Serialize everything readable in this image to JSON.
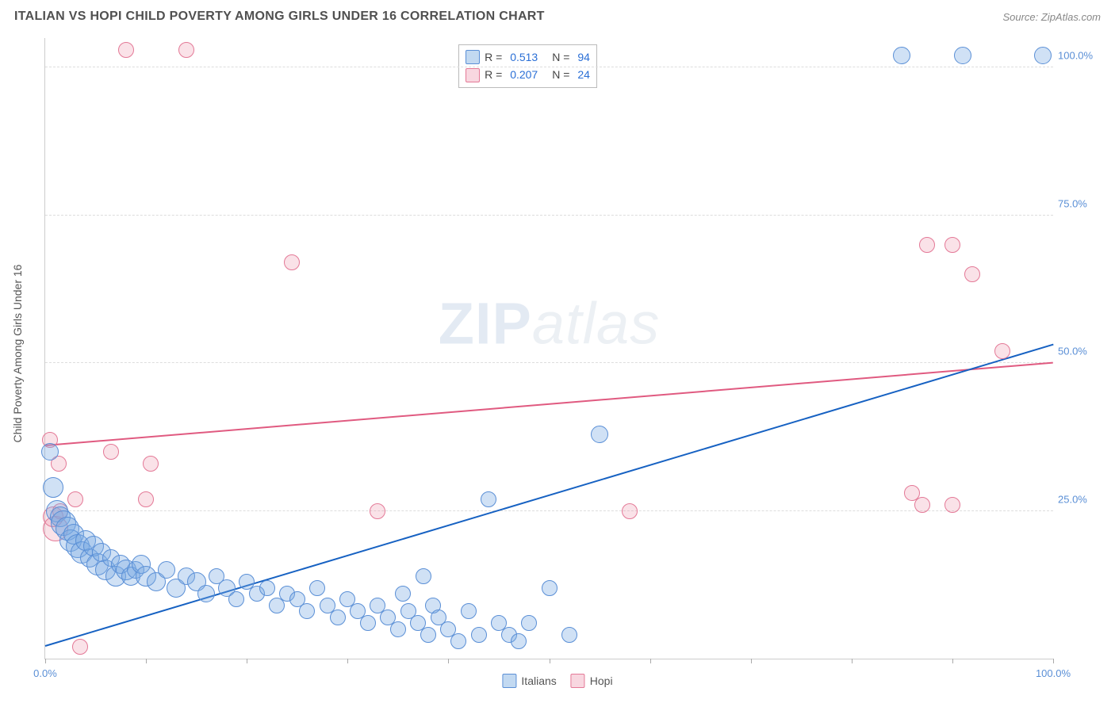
{
  "header": {
    "title": "ITALIAN VS HOPI CHILD POVERTY AMONG GIRLS UNDER 16 CORRELATION CHART",
    "source": "Source: ZipAtlas.com"
  },
  "watermark": {
    "zip": "ZIP",
    "atlas": "atlas"
  },
  "chart": {
    "type": "scatter",
    "xlim": [
      0,
      100
    ],
    "ylim": [
      0,
      105
    ],
    "xticks": [
      0,
      10,
      20,
      30,
      40,
      50,
      60,
      70,
      80,
      90,
      100
    ],
    "xtick_labels": {
      "0": "0.0%",
      "100": "100.0%"
    },
    "yticks": [
      25,
      50,
      75,
      100
    ],
    "ytick_labels": {
      "25": "25.0%",
      "50": "50.0%",
      "75": "75.0%",
      "100": "100.0%"
    },
    "yaxis_label": "Child Poverty Among Girls Under 16",
    "background_color": "#ffffff",
    "grid_color": "#dddddd",
    "legend": {
      "italians_label": "Italians",
      "hopi_label": "Hopi"
    },
    "rn_box": {
      "italians": {
        "r": "0.513",
        "n": "94"
      },
      "hopi": {
        "r": "0.207",
        "n": "24"
      }
    },
    "series": {
      "italians": {
        "color_fill": "rgba(120,170,225,0.35)",
        "color_stroke": "#5a8fd6",
        "regression": {
          "x1": 0,
          "y1": 2,
          "x2": 100,
          "y2": 53,
          "color": "#1661c2"
        },
        "points": [
          {
            "x": 0.5,
            "y": 35,
            "r": 11
          },
          {
            "x": 0.8,
            "y": 29,
            "r": 13
          },
          {
            "x": 1.2,
            "y": 25,
            "r": 14
          },
          {
            "x": 1.5,
            "y": 24,
            "r": 13
          },
          {
            "x": 1.8,
            "y": 23,
            "r": 16
          },
          {
            "x": 2.2,
            "y": 22,
            "r": 15
          },
          {
            "x": 2.5,
            "y": 20,
            "r": 14
          },
          {
            "x": 2.8,
            "y": 21,
            "r": 13
          },
          {
            "x": 3.2,
            "y": 19,
            "r": 15
          },
          {
            "x": 3.6,
            "y": 18,
            "r": 14
          },
          {
            "x": 4.0,
            "y": 20,
            "r": 13
          },
          {
            "x": 4.4,
            "y": 17,
            "r": 12
          },
          {
            "x": 4.8,
            "y": 19,
            "r": 13
          },
          {
            "x": 5.2,
            "y": 16,
            "r": 14
          },
          {
            "x": 5.6,
            "y": 18,
            "r": 12
          },
          {
            "x": 6.0,
            "y": 15,
            "r": 13
          },
          {
            "x": 6.5,
            "y": 17,
            "r": 11
          },
          {
            "x": 7.0,
            "y": 14,
            "r": 13
          },
          {
            "x": 7.5,
            "y": 16,
            "r": 12
          },
          {
            "x": 8.0,
            "y": 15,
            "r": 13
          },
          {
            "x": 8.5,
            "y": 14,
            "r": 12
          },
          {
            "x": 9.0,
            "y": 15,
            "r": 11
          },
          {
            "x": 9.5,
            "y": 16,
            "r": 12
          },
          {
            "x": 10.0,
            "y": 14,
            "r": 13
          },
          {
            "x": 11.0,
            "y": 13,
            "r": 12
          },
          {
            "x": 12.0,
            "y": 15,
            "r": 11
          },
          {
            "x": 13.0,
            "y": 12,
            "r": 12
          },
          {
            "x": 14.0,
            "y": 14,
            "r": 11
          },
          {
            "x": 15.0,
            "y": 13,
            "r": 12
          },
          {
            "x": 16.0,
            "y": 11,
            "r": 11
          },
          {
            "x": 17.0,
            "y": 14,
            "r": 10
          },
          {
            "x": 18.0,
            "y": 12,
            "r": 11
          },
          {
            "x": 19.0,
            "y": 10,
            "r": 10
          },
          {
            "x": 20.0,
            "y": 13,
            "r": 10
          },
          {
            "x": 21.0,
            "y": 11,
            "r": 10
          },
          {
            "x": 22.0,
            "y": 12,
            "r": 10
          },
          {
            "x": 23.0,
            "y": 9,
            "r": 10
          },
          {
            "x": 24.0,
            "y": 11,
            "r": 10
          },
          {
            "x": 25.0,
            "y": 10,
            "r": 10
          },
          {
            "x": 26.0,
            "y": 8,
            "r": 10
          },
          {
            "x": 27.0,
            "y": 12,
            "r": 10
          },
          {
            "x": 28.0,
            "y": 9,
            "r": 10
          },
          {
            "x": 29.0,
            "y": 7,
            "r": 10
          },
          {
            "x": 30.0,
            "y": 10,
            "r": 10
          },
          {
            "x": 31.0,
            "y": 8,
            "r": 10
          },
          {
            "x": 32.0,
            "y": 6,
            "r": 10
          },
          {
            "x": 33.0,
            "y": 9,
            "r": 10
          },
          {
            "x": 34.0,
            "y": 7,
            "r": 10
          },
          {
            "x": 35.0,
            "y": 5,
            "r": 10
          },
          {
            "x": 35.5,
            "y": 11,
            "r": 10
          },
          {
            "x": 36.0,
            "y": 8,
            "r": 10
          },
          {
            "x": 37.0,
            "y": 6,
            "r": 10
          },
          {
            "x": 37.5,
            "y": 14,
            "r": 10
          },
          {
            "x": 38.0,
            "y": 4,
            "r": 10
          },
          {
            "x": 38.5,
            "y": 9,
            "r": 10
          },
          {
            "x": 39.0,
            "y": 7,
            "r": 10
          },
          {
            "x": 40.0,
            "y": 5,
            "r": 10
          },
          {
            "x": 41.0,
            "y": 3,
            "r": 10
          },
          {
            "x": 42.0,
            "y": 8,
            "r": 10
          },
          {
            "x": 43.0,
            "y": 4,
            "r": 10
          },
          {
            "x": 44.0,
            "y": 27,
            "r": 10
          },
          {
            "x": 45.0,
            "y": 6,
            "r": 10
          },
          {
            "x": 46.0,
            "y": 4,
            "r": 10
          },
          {
            "x": 47.0,
            "y": 3,
            "r": 10
          },
          {
            "x": 48.0,
            "y": 6,
            "r": 10
          },
          {
            "x": 50.0,
            "y": 12,
            "r": 10
          },
          {
            "x": 52.0,
            "y": 4,
            "r": 10
          },
          {
            "x": 55.0,
            "y": 38,
            "r": 11
          },
          {
            "x": 85.0,
            "y": 102,
            "r": 11
          },
          {
            "x": 91.0,
            "y": 102,
            "r": 11
          },
          {
            "x": 99.0,
            "y": 102,
            "r": 11
          }
        ]
      },
      "hopi": {
        "color_fill": "rgba(235,140,165,0.25)",
        "color_stroke": "#e47997",
        "regression": {
          "x1": 0,
          "y1": 36,
          "x2": 100,
          "y2": 50,
          "color": "#e05a80"
        },
        "points": [
          {
            "x": 0.5,
            "y": 37,
            "r": 10
          },
          {
            "x": 0.8,
            "y": 24,
            "r": 13
          },
          {
            "x": 1.0,
            "y": 22,
            "r": 16
          },
          {
            "x": 1.3,
            "y": 33,
            "r": 10
          },
          {
            "x": 1.5,
            "y": 25,
            "r": 10
          },
          {
            "x": 3.0,
            "y": 27,
            "r": 10
          },
          {
            "x": 3.5,
            "y": 2,
            "r": 10
          },
          {
            "x": 6.5,
            "y": 35,
            "r": 10
          },
          {
            "x": 8.0,
            "y": 103,
            "r": 10
          },
          {
            "x": 10.0,
            "y": 27,
            "r": 10
          },
          {
            "x": 10.5,
            "y": 33,
            "r": 10
          },
          {
            "x": 14.0,
            "y": 103,
            "r": 10
          },
          {
            "x": 24.5,
            "y": 67,
            "r": 10
          },
          {
            "x": 33.0,
            "y": 25,
            "r": 10
          },
          {
            "x": 58.0,
            "y": 25,
            "r": 10
          },
          {
            "x": 86.0,
            "y": 28,
            "r": 10
          },
          {
            "x": 87.0,
            "y": 26,
            "r": 10
          },
          {
            "x": 87.5,
            "y": 70,
            "r": 10
          },
          {
            "x": 90.0,
            "y": 70,
            "r": 10
          },
          {
            "x": 90.0,
            "y": 26,
            "r": 10
          },
          {
            "x": 92.0,
            "y": 65,
            "r": 10
          },
          {
            "x": 95.0,
            "y": 52,
            "r": 10
          }
        ]
      }
    }
  }
}
